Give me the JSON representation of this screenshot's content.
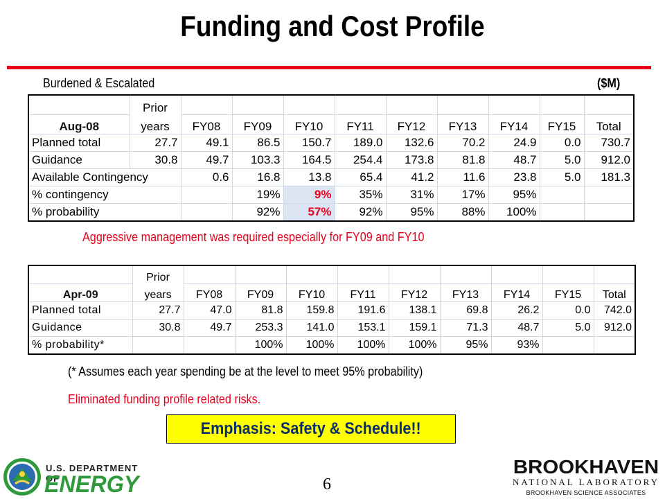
{
  "title": "Funding and Cost Profile",
  "subheader": {
    "left": "Burdened & Escalated",
    "right": "($M)"
  },
  "table1": {
    "label": "Aug-08",
    "prior_line1": "Prior",
    "prior_line2": "years",
    "columns": [
      "FY08",
      "FY09",
      "FY10",
      "FY11",
      "FY12",
      "FY13",
      "FY14",
      "FY15",
      "Total"
    ],
    "rows": [
      {
        "label": "Planned total",
        "cells": [
          "27.7",
          "49.1",
          "86.5",
          "150.7",
          "189.0",
          "132.6",
          "70.2",
          "24.9",
          "0.0",
          "730.7"
        ]
      },
      {
        "label": "Guidance",
        "cells": [
          "30.8",
          "49.7",
          "103.3",
          "164.5",
          "254.4",
          "173.8",
          "81.8",
          "48.7",
          "5.0",
          "912.0"
        ]
      },
      {
        "label": "Available Contingency",
        "cells": [
          "0.6",
          "16.8",
          "13.8",
          "65.4",
          "41.2",
          "11.6",
          "23.8",
          "5.0",
          "181.3"
        ]
      },
      {
        "label": "% contingency",
        "cells": [
          "",
          "19%",
          "9%",
          "35%",
          "31%",
          "17%",
          "95%",
          "",
          ""
        ]
      },
      {
        "label": "% probability",
        "cells": [
          "",
          "92%",
          "57%",
          "92%",
          "95%",
          "88%",
          "100%",
          "",
          ""
        ]
      }
    ]
  },
  "note1": "Aggressive management was required especially for FY09 and FY10",
  "table2": {
    "label": "Apr-09",
    "prior_line1": "Prior",
    "prior_line2": "years",
    "columns": [
      "FY08",
      "FY09",
      "FY10",
      "FY11",
      "FY12",
      "FY13",
      "FY14",
      "FY15",
      "Total"
    ],
    "rows": [
      {
        "label": "Planned total",
        "cells": [
          "27.7",
          "47.0",
          "81.8",
          "159.8",
          "191.6",
          "138.1",
          "69.8",
          "26.2",
          "0.0",
          "742.0"
        ]
      },
      {
        "label": "Guidance",
        "cells": [
          "30.8",
          "49.7",
          "253.3",
          "141.0",
          "153.1",
          "159.1",
          "71.3",
          "48.7",
          "5.0",
          "912.0"
        ]
      },
      {
        "label": "% probability*",
        "cells": [
          "",
          "",
          "100%",
          "100%",
          "100%",
          "100%",
          "95%",
          "93%",
          "",
          ""
        ]
      }
    ]
  },
  "note2": "(* Assumes each year spending be at the level to meet 95% probability)",
  "note3": "Eliminated funding profile related risks.",
  "emphasis": "Emphasis: Safety & Schedule!!",
  "footer": {
    "doe_line1": "U.S. DEPARTMENT OF",
    "doe_line2": "ENERGY",
    "page": "6",
    "bnl_line1": "BROOKHAVEN",
    "bnl_line2": "NATIONAL LABORATORY",
    "bnl_line3": "BROOKHAVEN SCIENCE ASSOCIATES"
  },
  "colors": {
    "accent_red": "#e8001c",
    "highlight_blue": "#dbe5f3",
    "emphasis_yellow": "#ffff00",
    "doe_green": "#2f9a3c"
  }
}
